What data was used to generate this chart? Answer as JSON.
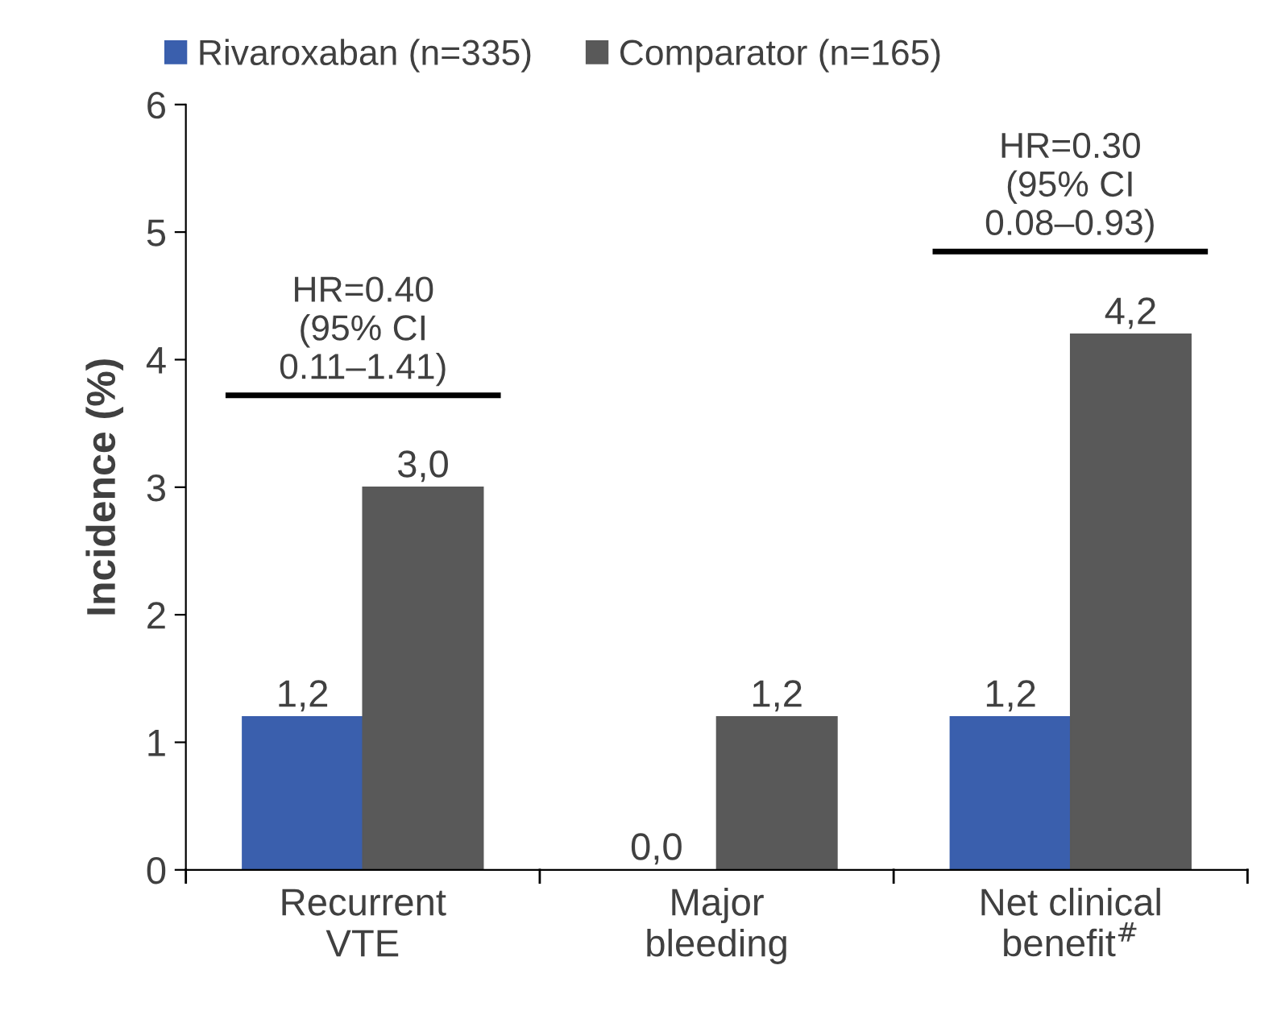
{
  "chart_data": {
    "type": "bar",
    "ylabel": "Incidence (%)",
    "categories": [
      "Recurrent\nVTE",
      "Major\nbleeding",
      "Net clinical\nbenefit$^{#}$"
    ],
    "series": [
      {
        "name": "Rivaroxaban (n=335)",
        "color": "#3a5fad",
        "values": [
          1.2,
          0.0,
          1.2
        ],
        "value_labels": [
          "1,2",
          "0,0",
          "1,2"
        ]
      },
      {
        "name": "Comparator (n=165)",
        "color": "#595959",
        "values": [
          3.0,
          1.2,
          4.2
        ],
        "value_labels": [
          "3,0",
          "1,2",
          "4,2"
        ]
      }
    ],
    "ylim": [
      0,
      6
    ],
    "yticks": [
      0,
      1,
      2,
      3,
      4,
      5,
      6
    ],
    "grid": false,
    "legend": "top left",
    "annotations": [
      "HR=0.40\n(95% CI\n0.11–1.41)",
      "HR=0.30\n(95% CI\n0.08–0.93)"
    ]
  }
}
